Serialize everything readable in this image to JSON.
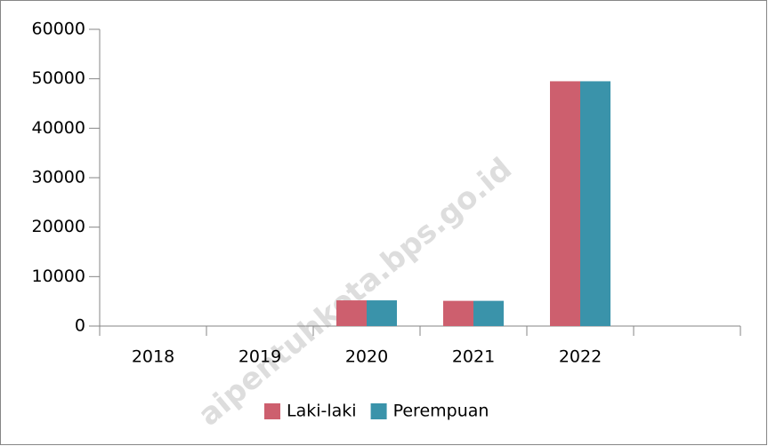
{
  "chart_data": {
    "type": "bar",
    "categories": [
      "2018",
      "2019",
      "2020",
      "2021",
      "2022",
      null
    ],
    "series": [
      {
        "name": "Laki-laki",
        "color": "#cd5f6e",
        "values": [
          0,
          0,
          5200,
          5100,
          49500,
          null
        ]
      },
      {
        "name": "Perempuan",
        "color": "#3a93aa",
        "values": [
          0,
          0,
          5200,
          5100,
          49500,
          null
        ]
      }
    ],
    "ylim": [
      0,
      60000
    ],
    "yticks": [
      0,
      10000,
      20000,
      30000,
      40000,
      50000,
      60000
    ],
    "grid": false,
    "legend": "bottom",
    "watermark": "aipentuhkota.bps.go.id"
  }
}
